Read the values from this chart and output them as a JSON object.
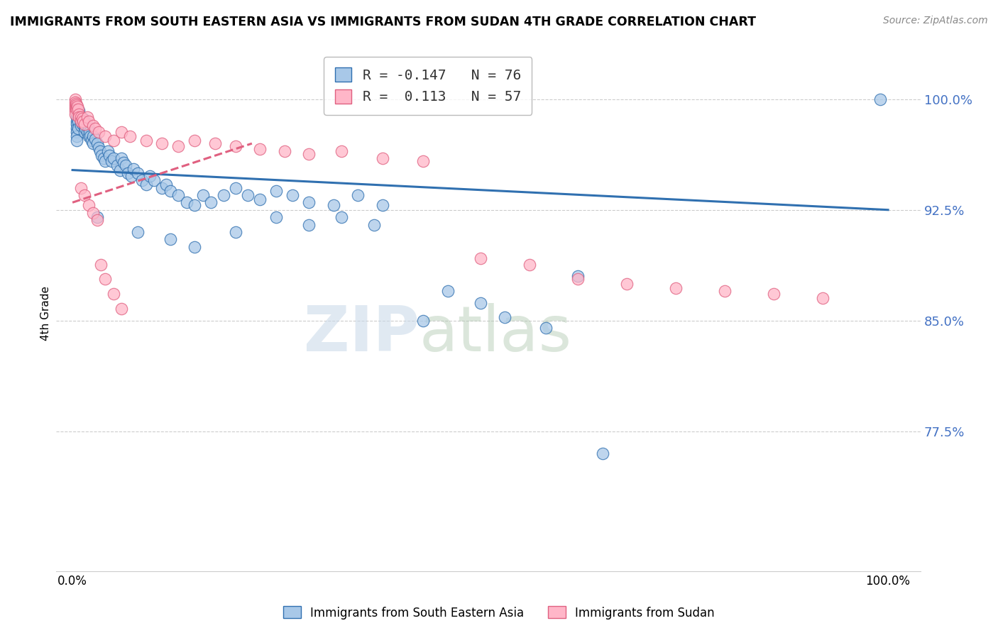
{
  "title": "IMMIGRANTS FROM SOUTH EASTERN ASIA VS IMMIGRANTS FROM SUDAN 4TH GRADE CORRELATION CHART",
  "source": "Source: ZipAtlas.com",
  "ylabel": "4th Grade",
  "y_min": 0.68,
  "y_max": 1.03,
  "x_min": -0.02,
  "x_max": 1.04,
  "watermark_zip": "ZIP",
  "watermark_atlas": "atlas",
  "legend_label1": "R = -0.147   N = 76",
  "legend_label2": "R =  0.113   N = 57",
  "bottom_label1": "Immigrants from South Eastern Asia",
  "bottom_label2": "Immigrants from Sudan",
  "blue_color": "#a8c8e8",
  "pink_color": "#ffb6c8",
  "line_blue": "#3070b0",
  "line_pink": "#e06080",
  "ytick_positions": [
    0.775,
    0.85,
    0.925,
    1.0
  ],
  "ytick_labels": [
    "77.5%",
    "85.0%",
    "92.5%",
    "100.0%"
  ],
  "blue_scatter_x": [
    0.005,
    0.005,
    0.005,
    0.005,
    0.005,
    0.005,
    0.005,
    0.005,
    0.007,
    0.007,
    0.007,
    0.008,
    0.01,
    0.01,
    0.01,
    0.012,
    0.013,
    0.015,
    0.015,
    0.015,
    0.016,
    0.018,
    0.018,
    0.02,
    0.02,
    0.021,
    0.022,
    0.023,
    0.025,
    0.025,
    0.028,
    0.03,
    0.032,
    0.034,
    0.036,
    0.038,
    0.04,
    0.043,
    0.045,
    0.048,
    0.05,
    0.055,
    0.058,
    0.06,
    0.063,
    0.065,
    0.068,
    0.072,
    0.075,
    0.08,
    0.085,
    0.09,
    0.095,
    0.1,
    0.11,
    0.115,
    0.12,
    0.13,
    0.14,
    0.15,
    0.16,
    0.17,
    0.185,
    0.2,
    0.215,
    0.23,
    0.25,
    0.27,
    0.29,
    0.32,
    0.35,
    0.38,
    0.43,
    0.5,
    0.62,
    0.99
  ],
  "blue_scatter_y": [
    0.99,
    0.988,
    0.985,
    0.983,
    0.98,
    0.978,
    0.975,
    0.972,
    0.99,
    0.985,
    0.98,
    0.992,
    0.988,
    0.985,
    0.982,
    0.983,
    0.987,
    0.985,
    0.982,
    0.978,
    0.98,
    0.983,
    0.978,
    0.98,
    0.975,
    0.978,
    0.975,
    0.972,
    0.975,
    0.97,
    0.973,
    0.97,
    0.967,
    0.965,
    0.962,
    0.96,
    0.958,
    0.965,
    0.962,
    0.958,
    0.96,
    0.955,
    0.952,
    0.96,
    0.957,
    0.955,
    0.95,
    0.948,
    0.953,
    0.95,
    0.945,
    0.942,
    0.948,
    0.945,
    0.94,
    0.942,
    0.938,
    0.935,
    0.93,
    0.928,
    0.935,
    0.93,
    0.935,
    0.94,
    0.935,
    0.932,
    0.938,
    0.935,
    0.93,
    0.928,
    0.935,
    0.928,
    0.85,
    0.862,
    0.88,
    1.0
  ],
  "blue_scatter_x2": [
    0.03,
    0.08,
    0.12,
    0.15,
    0.2,
    0.25,
    0.29,
    0.33,
    0.37,
    0.46,
    0.53,
    0.58,
    0.65
  ],
  "blue_scatter_y2": [
    0.92,
    0.91,
    0.905,
    0.9,
    0.91,
    0.92,
    0.915,
    0.92,
    0.915,
    0.87,
    0.852,
    0.845,
    0.76
  ],
  "pink_scatter_x": [
    0.003,
    0.003,
    0.003,
    0.003,
    0.003,
    0.003,
    0.004,
    0.004,
    0.005,
    0.005,
    0.006,
    0.007,
    0.008,
    0.008,
    0.01,
    0.01,
    0.012,
    0.013,
    0.015,
    0.018,
    0.02,
    0.025,
    0.028,
    0.032,
    0.04,
    0.05,
    0.06,
    0.07,
    0.09,
    0.11,
    0.13,
    0.15,
    0.175,
    0.2,
    0.23,
    0.26,
    0.29,
    0.33,
    0.38,
    0.43,
    0.5,
    0.56,
    0.62,
    0.68,
    0.74,
    0.8,
    0.86,
    0.92
  ],
  "pink_scatter_y": [
    1.0,
    0.998,
    0.996,
    0.994,
    0.992,
    0.99,
    0.997,
    0.994,
    0.996,
    0.993,
    0.995,
    0.993,
    0.99,
    0.988,
    0.988,
    0.985,
    0.987,
    0.985,
    0.983,
    0.988,
    0.985,
    0.982,
    0.98,
    0.978,
    0.975,
    0.972,
    0.978,
    0.975,
    0.972,
    0.97,
    0.968,
    0.972,
    0.97,
    0.968,
    0.966,
    0.965,
    0.963,
    0.965,
    0.96,
    0.958,
    0.892,
    0.888,
    0.878,
    0.875,
    0.872,
    0.87,
    0.868,
    0.865
  ],
  "pink_extra_x": [
    0.01,
    0.015,
    0.02,
    0.025,
    0.03,
    0.035,
    0.04,
    0.05,
    0.06
  ],
  "pink_extra_y": [
    0.94,
    0.935,
    0.928,
    0.923,
    0.918,
    0.888,
    0.878,
    0.868,
    0.858
  ]
}
